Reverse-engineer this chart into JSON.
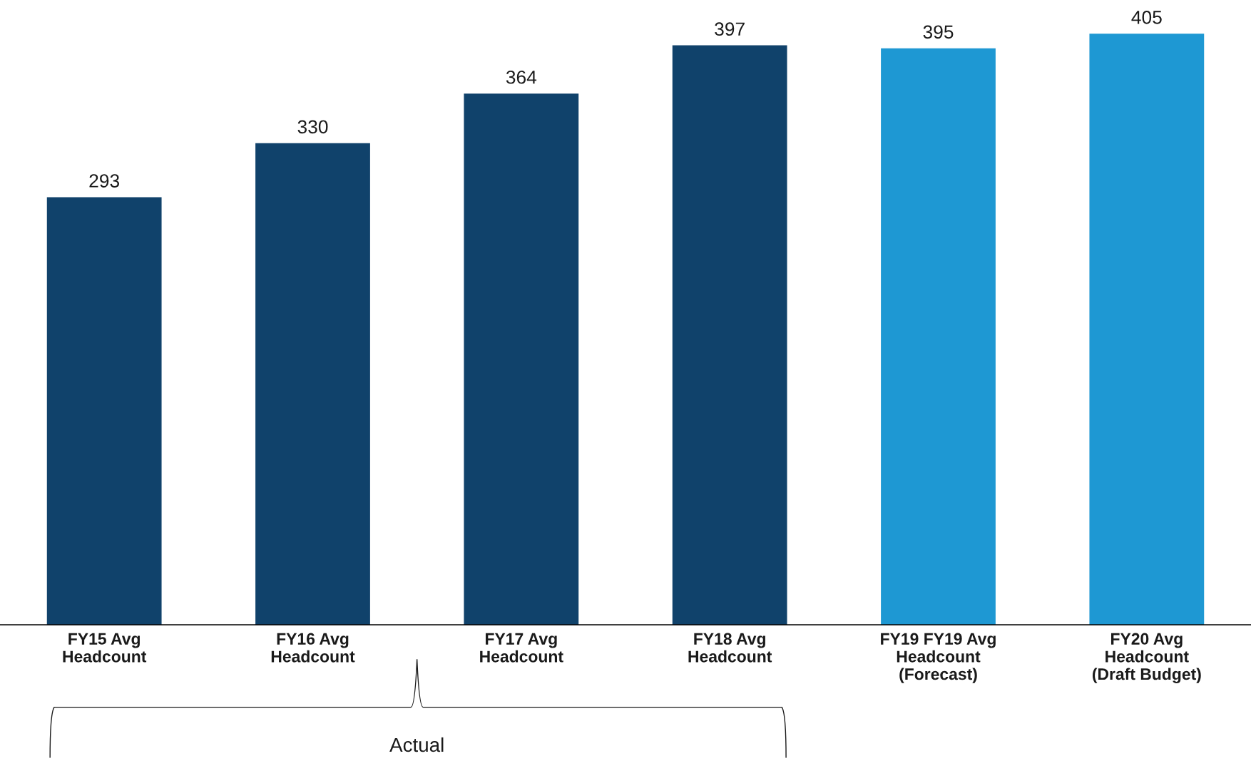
{
  "chart_data": {
    "type": "bar",
    "categories": [
      "FY15 Avg\nHeadcount",
      "FY16 Avg\nHeadcount",
      "FY17 Avg\nHeadcount",
      "FY18 Avg\nHeadcount",
      "FY19 FY19 Avg\nHeadcount\n(Forecast)",
      "FY20 Avg\nHeadcount\n(Draft Budget)"
    ],
    "values": [
      293,
      330,
      364,
      397,
      395,
      405
    ],
    "colors": [
      "#10426b",
      "#10426b",
      "#10426b",
      "#10426b",
      "#1e98d3",
      "#1e98d3"
    ],
    "data_labels": true,
    "grid": false,
    "legend": false,
    "annotations": [
      "Actual"
    ]
  }
}
